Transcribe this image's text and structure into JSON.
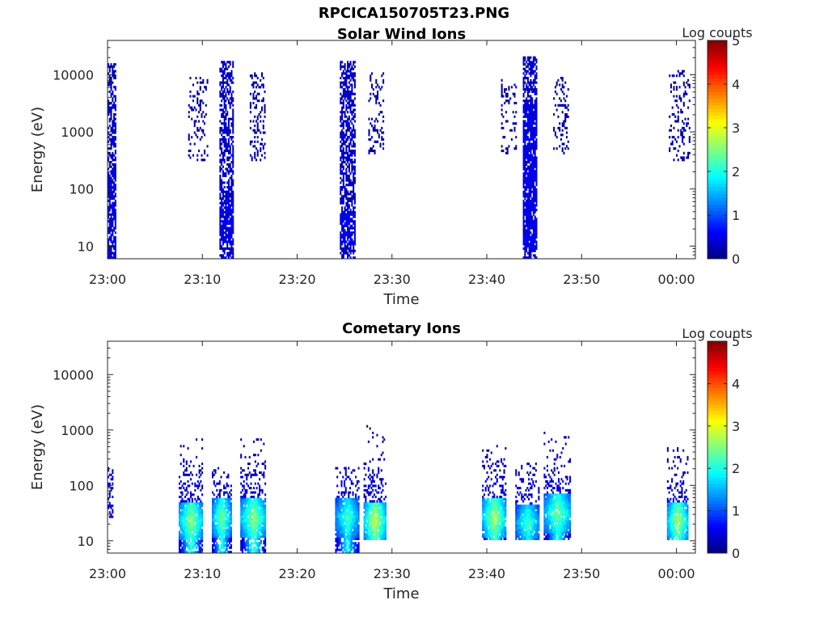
{
  "figure": {
    "title": "RPCICA150705T23.PNG"
  },
  "chart_data": [
    {
      "type": "heatmap",
      "title": "Solar Wind Ions",
      "xlabel": "Time",
      "ylabel": "Energy (eV)",
      "x_unit": "minutes after 23:00",
      "xlim": [
        0,
        62
      ],
      "xticks": [
        0,
        10,
        20,
        30,
        40,
        50,
        60
      ],
      "xtick_labels": [
        "23:00",
        "23:10",
        "23:20",
        "23:30",
        "23:40",
        "23:50",
        "00:00"
      ],
      "yscale": "log",
      "ylim": [
        6,
        40000
      ],
      "yticks": [
        10,
        100,
        1000,
        10000
      ],
      "ytick_labels": [
        "10",
        "100",
        "1000",
        "10000"
      ],
      "colorbar": {
        "label": "Log counts",
        "range": [
          0,
          5
        ],
        "ticks": [
          "0",
          "1",
          "2",
          "3",
          "4",
          "5"
        ],
        "colormap": "jet"
      },
      "bursts": [
        {
          "t_start": 0.0,
          "t_end": 0.8,
          "e_min": 6,
          "e_max": 15000,
          "level": 0.35,
          "density": 0.55,
          "hot_low": 6,
          "hot_high": 200
        },
        {
          "t_start": 8.5,
          "t_end": 10.5,
          "e_min": 300,
          "e_max": 9000,
          "level": 0.2,
          "density": 0.18
        },
        {
          "t_start": 11.8,
          "t_end": 13.2,
          "e_min": 6,
          "e_max": 17000,
          "level": 0.35,
          "density": 0.6,
          "hot_low": 10,
          "hot_high": 60
        },
        {
          "t_start": 15.0,
          "t_end": 16.5,
          "e_min": 300,
          "e_max": 12000,
          "level": 0.2,
          "density": 0.25
        },
        {
          "t_start": 24.5,
          "t_end": 26.0,
          "e_min": 6,
          "e_max": 16000,
          "level": 0.35,
          "density": 0.6,
          "hot_low": 10,
          "hot_high": 40
        },
        {
          "t_start": 27.5,
          "t_end": 29.0,
          "e_min": 400,
          "e_max": 11000,
          "level": 0.2,
          "density": 0.2
        },
        {
          "t_start": 41.5,
          "t_end": 43.0,
          "e_min": 400,
          "e_max": 8000,
          "level": 0.2,
          "density": 0.2
        },
        {
          "t_start": 43.8,
          "t_end": 45.2,
          "e_min": 6,
          "e_max": 20000,
          "level": 0.35,
          "density": 0.6,
          "hot_low": 8,
          "hot_high": 3000
        },
        {
          "t_start": 47.0,
          "t_end": 48.5,
          "e_min": 400,
          "e_max": 9000,
          "level": 0.2,
          "density": 0.22
        },
        {
          "t_start": 59.2,
          "t_end": 61.3,
          "e_min": 300,
          "e_max": 12000,
          "level": 0.2,
          "density": 0.2
        }
      ]
    },
    {
      "type": "heatmap",
      "title": "Cometary Ions",
      "xlabel": "Time",
      "ylabel": "Energy (eV)",
      "x_unit": "minutes after 23:00",
      "xlim": [
        0,
        62
      ],
      "xticks": [
        0,
        10,
        20,
        30,
        40,
        50,
        60
      ],
      "xtick_labels": [
        "23:00",
        "23:10",
        "23:20",
        "23:30",
        "23:40",
        "23:50",
        "00:00"
      ],
      "yscale": "log",
      "ylim": [
        6,
        40000
      ],
      "yticks": [
        10,
        100,
        1000,
        10000
      ],
      "ytick_labels": [
        "10",
        "100",
        "1000",
        "10000"
      ],
      "colorbar": {
        "label": "Log counts",
        "range": [
          0,
          5
        ],
        "ticks": [
          "0",
          "1",
          "2",
          "3",
          "4",
          "5"
        ],
        "colormap": "jet"
      },
      "bursts": [
        {
          "t_start": 0.0,
          "t_end": 0.5,
          "e_min": 25,
          "e_max": 200,
          "level": 0.5,
          "density": 0.35
        },
        {
          "t_start": 7.5,
          "t_end": 10.0,
          "e_min": 6,
          "e_max": 650,
          "level": 2.1,
          "density": 0.7,
          "core_e": 22
        },
        {
          "t_start": 11.0,
          "t_end": 13.0,
          "e_min": 6,
          "e_max": 200,
          "level": 2.0,
          "density": 0.7,
          "core_e": 25
        },
        {
          "t_start": 14.0,
          "t_end": 16.7,
          "e_min": 6,
          "e_max": 650,
          "level": 2.1,
          "density": 0.75,
          "core_e": 25
        },
        {
          "t_start": 24.0,
          "t_end": 26.5,
          "e_min": 6,
          "e_max": 200,
          "level": 1.8,
          "density": 0.65,
          "core_e": 25
        },
        {
          "t_start": 27.0,
          "t_end": 29.3,
          "e_min": 10,
          "e_max": 1200,
          "level": 2.3,
          "density": 0.7,
          "core_e": 22
        },
        {
          "t_start": 39.5,
          "t_end": 42.0,
          "e_min": 10,
          "e_max": 500,
          "level": 2.2,
          "density": 0.65,
          "core_e": 25
        },
        {
          "t_start": 43.0,
          "t_end": 45.5,
          "e_min": 10,
          "e_max": 250,
          "level": 1.8,
          "density": 0.6,
          "core_e": 20
        },
        {
          "t_start": 46.0,
          "t_end": 48.8,
          "e_min": 10,
          "e_max": 900,
          "level": 2.0,
          "density": 0.65,
          "core_e": 30
        },
        {
          "t_start": 59.0,
          "t_end": 61.2,
          "e_min": 10,
          "e_max": 500,
          "level": 2.2,
          "density": 0.65,
          "core_e": 22
        }
      ]
    }
  ]
}
